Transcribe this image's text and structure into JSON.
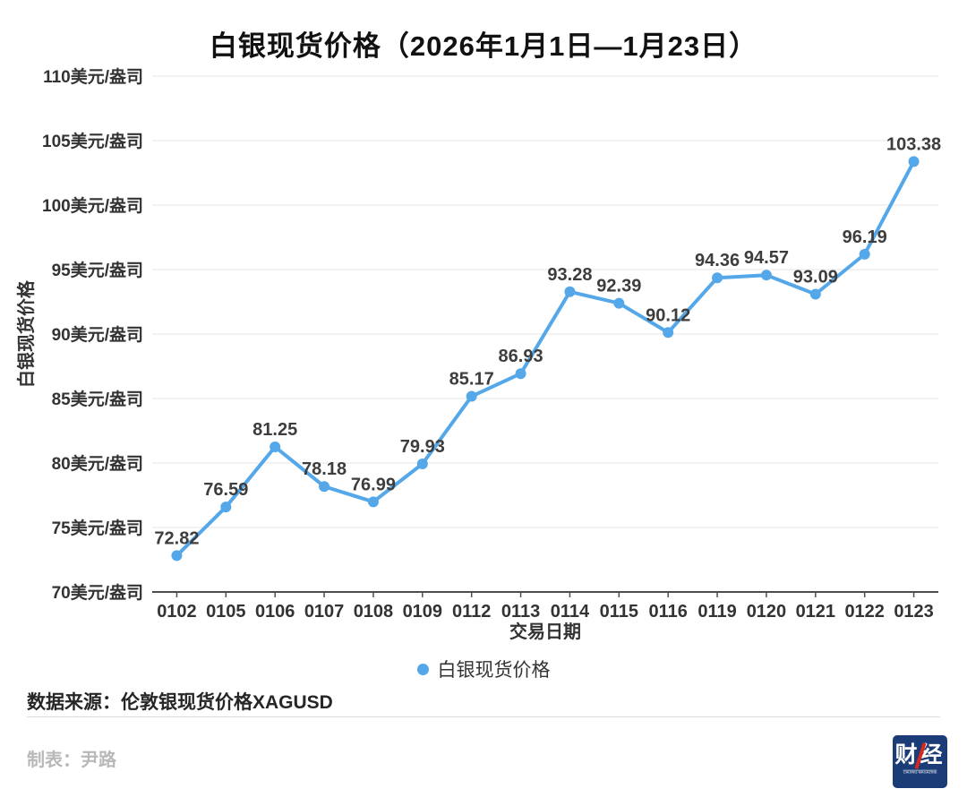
{
  "header": {
    "title": "白银现货价格（2026年1月1日—1月23日）"
  },
  "chart_data": {
    "type": "line",
    "title": "白银现货价格（2026年1月1日—1月23日）",
    "categories": [
      "0102",
      "0105",
      "0106",
      "0107",
      "0108",
      "0109",
      "0112",
      "0113",
      "0114",
      "0115",
      "0116",
      "0119",
      "0120",
      "0121",
      "0122",
      "0123"
    ],
    "series": [
      {
        "name": "白银现货价格",
        "values": [
          72.82,
          76.59,
          81.25,
          78.18,
          76.99,
          79.93,
          85.17,
          86.93,
          93.28,
          92.39,
          90.12,
          94.36,
          94.57,
          93.09,
          96.19,
          103.38
        ]
      }
    ],
    "xlabel": "交易日期",
    "ylabel": "白银现货价格",
    "ylim": [
      70,
      110
    ],
    "y_tick_step": 5,
    "y_tick_suffix": "美元/盎司",
    "grid": true,
    "legend_position": "bottom",
    "show_point_labels": true,
    "line_color": "#54a7e8",
    "marker_color": "#54a7e8",
    "grid_color": "#e4e4e4",
    "axis_color": "#4d4d4d",
    "tick_label_color": "#333333",
    "point_label_color": "#3d3d3d"
  },
  "legend": {
    "label": "白银现货价格",
    "marker_color": "#54a7e8"
  },
  "source": {
    "text": "数据来源：伦敦银现货价格XAGUSD"
  },
  "footer": {
    "credit": "制表：尹路",
    "logo": {
      "text": "财经",
      "subtext": "CAIJING MAGAZINE",
      "bg_color": "#1c3c77",
      "accent_color": "#d5281e"
    }
  }
}
